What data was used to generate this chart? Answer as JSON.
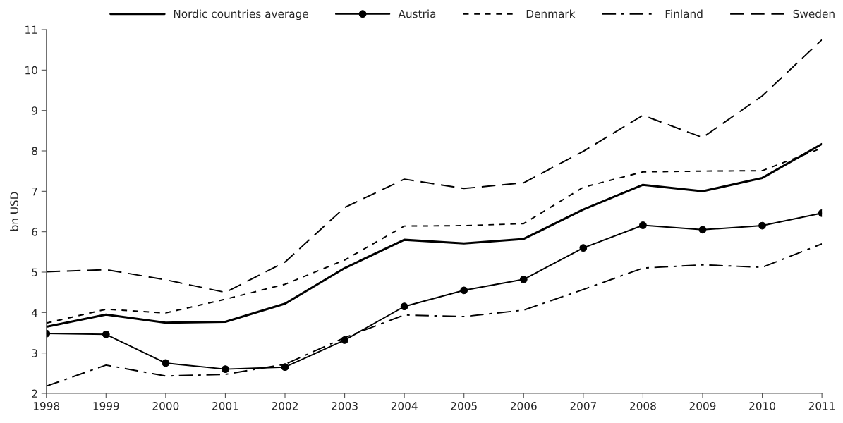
{
  "chart_data": {
    "type": "line",
    "ylabel": "bn USD",
    "x": [
      1998,
      1999,
      2000,
      2001,
      2002,
      2003,
      2004,
      2005,
      2006,
      2007,
      2008,
      2009,
      2010,
      2011
    ],
    "series": [
      {
        "name": "Nordic countries average",
        "color": "#000000",
        "line_style": "solid",
        "marker": "none",
        "values": [
          3.65,
          3.95,
          3.75,
          3.77,
          4.22,
          5.1,
          5.8,
          5.71,
          5.82,
          6.55,
          7.16,
          7.0,
          7.33,
          8.17
        ]
      },
      {
        "name": "Austria",
        "color": "#000000",
        "line_style": "solid",
        "marker": "circle",
        "values": [
          3.48,
          3.46,
          2.75,
          2.6,
          2.65,
          3.32,
          4.15,
          4.55,
          4.82,
          5.6,
          6.16,
          6.05,
          6.15,
          6.46
        ]
      },
      {
        "name": "Denmark",
        "color": "#000000",
        "line_style": "dotted",
        "marker": "none",
        "values": [
          3.74,
          4.08,
          3.99,
          4.33,
          4.7,
          5.3,
          6.14,
          6.15,
          6.2,
          7.1,
          7.48,
          7.5,
          7.51,
          8.07
        ]
      },
      {
        "name": "Finland",
        "color": "#000000",
        "line_style": "dashdot",
        "marker": "none",
        "values": [
          2.18,
          2.7,
          2.43,
          2.47,
          2.72,
          3.38,
          3.94,
          3.9,
          4.06,
          4.57,
          5.1,
          5.18,
          5.12,
          5.7
        ]
      },
      {
        "name": "Sweden",
        "color": "#000000",
        "line_style": "dashed",
        "marker": "none",
        "values": [
          5.01,
          5.06,
          4.81,
          4.5,
          5.25,
          6.6,
          7.3,
          7.07,
          7.21,
          7.99,
          8.88,
          8.33,
          9.36,
          10.75
        ]
      }
    ],
    "xlim": [
      1998,
      2011
    ],
    "xticks": [
      1998,
      1999,
      2000,
      2001,
      2002,
      2003,
      2004,
      2005,
      2006,
      2007,
      2008,
      2009,
      2010,
      2011
    ],
    "ylim": [
      2,
      11
    ],
    "yticks": [
      2,
      3,
      4,
      5,
      6,
      7,
      8,
      9,
      10,
      11
    ],
    "grid": false,
    "legend": "top"
  }
}
